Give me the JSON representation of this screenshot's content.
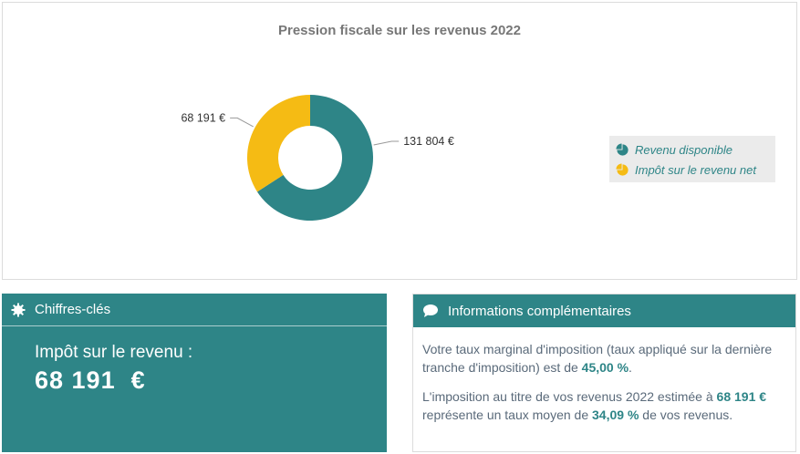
{
  "chart_panel": {
    "title": "Pression fiscale sur les revenus 2022"
  },
  "chart_data": {
    "type": "pie",
    "title": "Pression fiscale sur les revenus 2022",
    "series": [
      {
        "name": "Revenu disponible",
        "value": 131804,
        "label": "131 804 €",
        "color": "#2e8587"
      },
      {
        "name": "Impôt sur le revenu net",
        "value": 68191,
        "label": "68 191 €",
        "color": "#f5bb14"
      }
    ],
    "legend_placement": "right"
  },
  "legend": {
    "items": [
      {
        "label": "Revenu disponible",
        "icon": "pie-icon",
        "color": "#2e8587"
      },
      {
        "label": "Impôt sur le revenu net",
        "icon": "pie-icon",
        "color": "#f5bb14"
      }
    ]
  },
  "key_figures": {
    "title": "Chiffres-clés",
    "icon": "gear-icon",
    "label": "Impôt sur le revenu :",
    "value": "68 191  €"
  },
  "info": {
    "title": "Informations complémentaires",
    "icon": "speech-bubble-icon",
    "p1_a": "Votre taux marginal d'imposition (taux appliqué sur la dernière tranche d'imposition) est de ",
    "p1_rate": "45,00 %",
    "p1_b": ".",
    "p2_a": "L'imposition au titre de vos revenus 2022 estimée à ",
    "p2_amount": "68 191 €",
    "p2_b": " représente un taux moyen de ",
    "p2_rate": "34,09 %",
    "p2_c": " de vos revenus."
  },
  "colors": {
    "accent": "#2e8587",
    "secondary": "#f5bb14"
  }
}
